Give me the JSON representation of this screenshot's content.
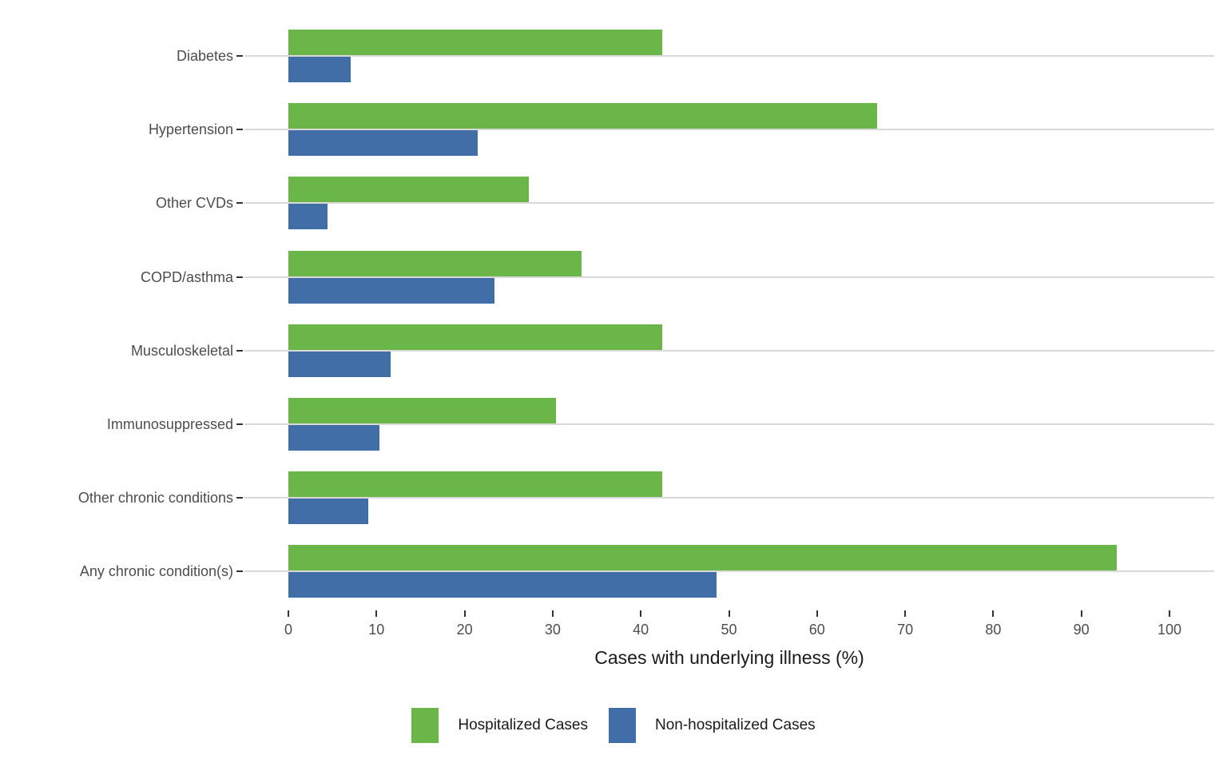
{
  "figure": {
    "background_color": "#FFFFFF",
    "gridline_color": "#D9D9D9",
    "tick_color": "#333333",
    "label_color": "#4D4D4D",
    "axis_title_color": "#1A1A1A"
  },
  "chart_data": {
    "type": "bar",
    "orientation": "horizontal",
    "title": "",
    "xlabel": "Cases with underlying illness (%)",
    "ylabel": "",
    "categories": [
      "Diabetes",
      "Hypertension",
      "Other CVDs",
      "COPD/asthma",
      "Musculoskeletal",
      "Immunosuppressed",
      "Other chronic conditions",
      "Any chronic condition(s)"
    ],
    "series": [
      {
        "name": "Hospitalized Cases",
        "color": "#6AB648",
        "values": [
          42.4,
          66.8,
          27.3,
          33.3,
          42.4,
          30.4,
          42.4,
          94.0
        ]
      },
      {
        "name": "Non-hospitalized Cases",
        "color": "#426EA8",
        "values": [
          7.1,
          21.5,
          4.4,
          23.4,
          11.6,
          10.3,
          9.1,
          48.6
        ]
      }
    ],
    "x_ticks": [
      0,
      10,
      20,
      30,
      40,
      50,
      60,
      70,
      80,
      90,
      100
    ],
    "xlim": [
      0,
      100
    ],
    "grid": "horizontal",
    "legend_position": "bottom"
  }
}
